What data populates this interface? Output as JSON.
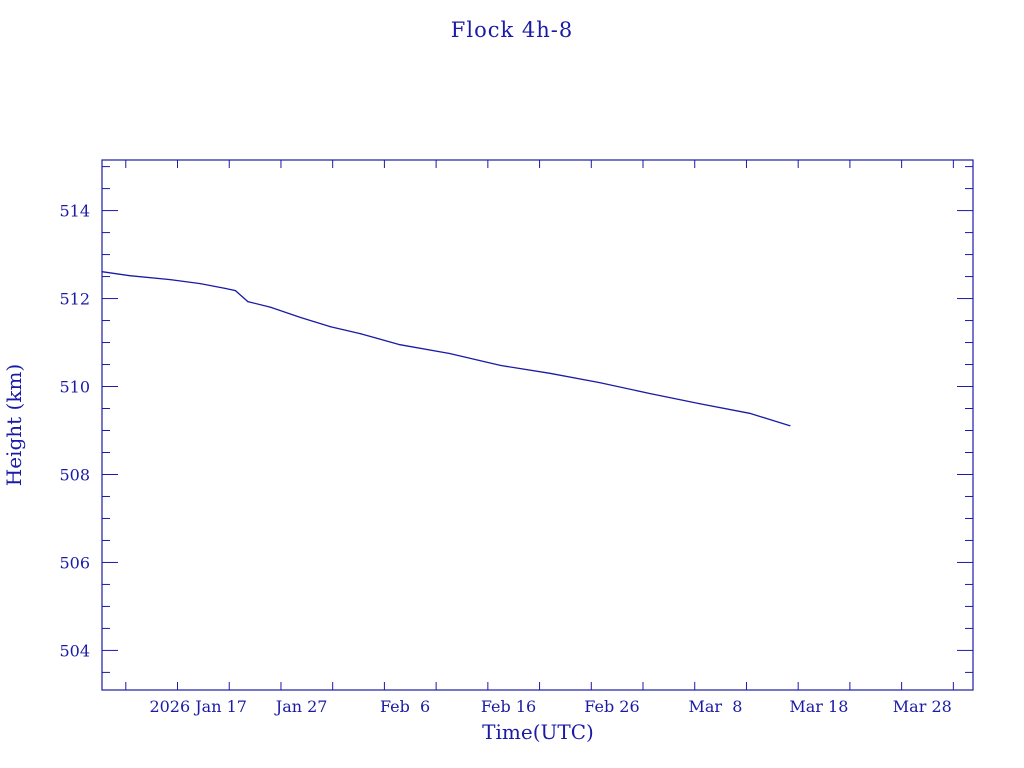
{
  "chart_data": {
    "type": "line",
    "title": "Flock 4h-8",
    "xlabel": "Time(UTC)",
    "ylabel": "Height (km)",
    "x_units": "day of year 2026",
    "xlim": [
      7.7,
      91.9
    ],
    "ylim": [
      503.1,
      515.15
    ],
    "x_ticks": [
      {
        "value": 17,
        "label": "2026 Jan 17"
      },
      {
        "value": 27,
        "label": "Jan 27"
      },
      {
        "value": 37,
        "label": "Feb  6"
      },
      {
        "value": 47,
        "label": "Feb 16"
      },
      {
        "value": 57,
        "label": "Feb 26"
      },
      {
        "value": 67,
        "label": "Mar  8"
      },
      {
        "value": 77,
        "label": "Mar 18"
      },
      {
        "value": 87,
        "label": "Mar 28"
      }
    ],
    "x_minor_step": 5,
    "y_ticks": [
      {
        "value": 504,
        "label": "504"
      },
      {
        "value": 506,
        "label": "506"
      },
      {
        "value": 508,
        "label": "508"
      },
      {
        "value": 510,
        "label": "510"
      },
      {
        "value": 512,
        "label": "512"
      },
      {
        "value": 514,
        "label": "514"
      }
    ],
    "y_minor_step": 0.5,
    "grid": false,
    "color": "#1a1aa6",
    "series": [
      {
        "name": "Height",
        "x": [
          7.7,
          10.4,
          14.3,
          17.2,
          19.6,
          20.6,
          21.8,
          24.0,
          26.9,
          29.8,
          32.7,
          36.5,
          41.3,
          46.2,
          51.0,
          55.8,
          60.7,
          65.5,
          70.3,
          74.2
        ],
        "y": [
          512.61,
          512.52,
          512.43,
          512.34,
          512.23,
          512.18,
          511.93,
          511.8,
          511.57,
          511.36,
          511.2,
          510.95,
          510.75,
          510.48,
          510.3,
          510.09,
          509.84,
          509.61,
          509.39,
          509.11
        ]
      }
    ]
  }
}
